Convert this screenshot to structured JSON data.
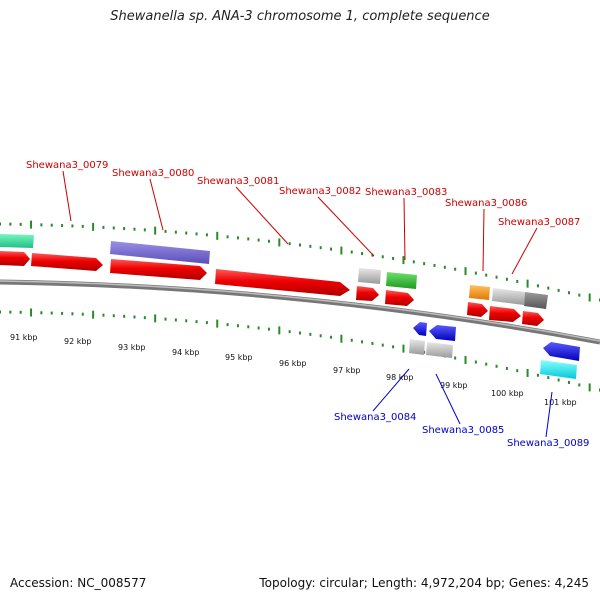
{
  "title": "Shewanella sp. ANA-3 chromosome 1, complete sequence",
  "footer": {
    "accession": "Accession: NC_008577",
    "topology": "Topology: circular; Length: 4,972,204 bp; Genes: 4,245"
  },
  "colors": {
    "forward_label": "#cc0000",
    "reverse_label": "#0000cc",
    "tick": "#2a8a2a",
    "backbone": "#888888"
  },
  "scale_labels": [
    "91 kbp",
    "92 kbp",
    "93 kbp",
    "94 kbp",
    "95 kbp",
    "96 kbp",
    "97 kbp",
    "98 kbp",
    "99 kbp",
    "100 kbp",
    "101 kbp"
  ],
  "gene_labels": {
    "forward": [
      "Shewana3_0079",
      "Shewana3_0080",
      "Shewana3_0081",
      "Shewana3_0082",
      "Shewana3_0083",
      "Shewana3_0086",
      "Shewana3_0087"
    ],
    "reverse": [
      "Shewana3_0084",
      "Shewana3_0085",
      "Shewana3_0089"
    ]
  }
}
